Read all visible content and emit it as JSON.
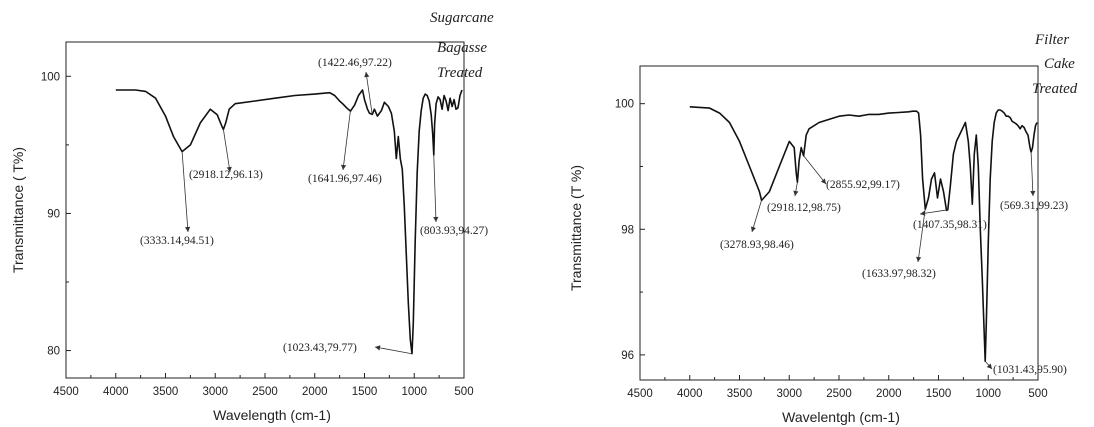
{
  "chart_data": [
    {
      "type": "line",
      "title_lines": [
        "Sugarcane",
        "Bagasse",
        "Treated"
      ],
      "xlabel": "Wavelength (cm-1)",
      "ylabel": "Transmittance ( T%)",
      "xlim": [
        4500,
        500
      ],
      "ylim": [
        78,
        102.5
      ],
      "xticks": [
        4500,
        4000,
        3500,
        3000,
        2500,
        2000,
        1500,
        1000,
        500
      ],
      "yticks": [
        80,
        90,
        100
      ],
      "grid": false,
      "series": [
        {
          "x": [
            4000,
            3800,
            3700,
            3600,
            3500,
            3420,
            3333,
            3250,
            3150,
            3050,
            2980,
            2930,
            2918,
            2895,
            2860,
            2800,
            2600,
            2400,
            2200,
            2000,
            1850,
            1800,
            1750,
            1720,
            1680,
            1641,
            1600,
            1560,
            1520,
            1500,
            1470,
            1450,
            1422,
            1400,
            1370,
            1330,
            1300,
            1260,
            1230,
            1200,
            1180,
            1160,
            1140,
            1120,
            1100,
            1080,
            1060,
            1040,
            1023,
            1010,
            990,
            970,
            950,
            930,
            910,
            890,
            870,
            850,
            830,
            815,
            804,
            795,
            780,
            760,
            740,
            720,
            700,
            680,
            660,
            640,
            620,
            600,
            580,
            560,
            540,
            520
          ],
          "y": [
            99.0,
            99.0,
            98.9,
            98.4,
            97.1,
            95.6,
            94.51,
            95.0,
            96.6,
            97.6,
            97.2,
            96.3,
            96.13,
            96.6,
            97.6,
            98.0,
            98.2,
            98.4,
            98.6,
            98.7,
            98.8,
            98.6,
            98.2,
            98.0,
            97.7,
            97.46,
            97.9,
            98.6,
            99.0,
            98.3,
            97.6,
            97.3,
            97.22,
            97.6,
            97.1,
            97.5,
            98.1,
            97.8,
            97.3,
            96.0,
            94.0,
            95.6,
            94.0,
            93.2,
            90.5,
            87.0,
            83.5,
            80.8,
            79.77,
            82.0,
            88.0,
            93.0,
            96.0,
            97.5,
            98.4,
            98.7,
            98.6,
            98.2,
            97.2,
            95.8,
            94.27,
            96.5,
            98.0,
            98.5,
            98.3,
            97.6,
            98.6,
            98.2,
            97.5,
            98.4,
            97.8,
            98.3,
            97.6,
            97.7,
            98.6,
            99.0
          ]
        }
      ],
      "annotations": [
        {
          "label": "(3333.14,94.51)",
          "x": 3333.14,
          "y": 94.51
        },
        {
          "label": "(2918.12,96.13)",
          "x": 2918.12,
          "y": 96.13
        },
        {
          "label": "(1641.96,97.46)",
          "x": 1641.96,
          "y": 97.46
        },
        {
          "label": "(1422.46,97.22)",
          "x": 1422.46,
          "y": 97.22
        },
        {
          "label": "(803.93,94.27)",
          "x": 803.93,
          "y": 94.27
        },
        {
          "label": "(1023.43,79.77)",
          "x": 1023.43,
          "y": 79.77
        }
      ]
    },
    {
      "type": "line",
      "title_lines": [
        "Filter",
        "Cake",
        "Treated"
      ],
      "xlabel": "Wavelentgh  (cm-1)",
      "ylabel": "Transmittance (T %)",
      "xlim": [
        4500,
        500
      ],
      "ylim": [
        95.6,
        100.6
      ],
      "xticks": [
        4500,
        4000,
        3500,
        3000,
        2500,
        2000,
        1500,
        1000,
        500
      ],
      "yticks": [
        96,
        98,
        100
      ],
      "grid": false,
      "series": [
        {
          "x": [
            4000,
            3800,
            3700,
            3600,
            3500,
            3400,
            3300,
            3278,
            3200,
            3100,
            3000,
            2950,
            2930,
            2918,
            2900,
            2880,
            2856,
            2830,
            2800,
            2700,
            2600,
            2500,
            2400,
            2300,
            2200,
            2100,
            2000,
            1900,
            1800,
            1760,
            1720,
            1700,
            1680,
            1660,
            1633,
            1600,
            1570,
            1540,
            1510,
            1480,
            1450,
            1420,
            1407,
            1380,
            1350,
            1320,
            1290,
            1260,
            1230,
            1200,
            1180,
            1160,
            1140,
            1120,
            1100,
            1080,
            1060,
            1040,
            1031,
            1020,
            1000,
            980,
            960,
            940,
            920,
            900,
            880,
            860,
            840,
            820,
            800,
            780,
            760,
            740,
            720,
            700,
            680,
            660,
            640,
            620,
            600,
            580,
            569,
            555,
            540,
            525,
            510
          ],
          "y": [
            99.95,
            99.93,
            99.85,
            99.7,
            99.4,
            99.0,
            98.6,
            98.46,
            98.6,
            99.0,
            99.4,
            99.3,
            98.9,
            98.75,
            99.1,
            99.3,
            99.17,
            99.5,
            99.6,
            99.7,
            99.75,
            99.8,
            99.82,
            99.8,
            99.83,
            99.83,
            99.85,
            99.86,
            99.87,
            99.88,
            99.88,
            99.85,
            99.5,
            98.8,
            98.32,
            98.5,
            98.8,
            98.9,
            98.5,
            98.8,
            98.6,
            98.3,
            98.31,
            98.7,
            99.2,
            99.4,
            99.5,
            99.6,
            99.7,
            99.4,
            99.0,
            98.4,
            99.2,
            99.5,
            99.0,
            98.0,
            97.2,
            96.3,
            95.9,
            96.5,
            97.8,
            98.8,
            99.4,
            99.7,
            99.85,
            99.9,
            99.9,
            99.88,
            99.85,
            99.8,
            99.8,
            99.78,
            99.72,
            99.7,
            99.68,
            99.65,
            99.6,
            99.65,
            99.62,
            99.55,
            99.5,
            99.3,
            99.23,
            99.3,
            99.5,
            99.65,
            99.7
          ]
        }
      ],
      "annotations": [
        {
          "label": "(3278.93,98.46)",
          "x": 3278.93,
          "y": 98.46
        },
        {
          "label": "(2918.12,98.75)",
          "x": 2918.12,
          "y": 98.75
        },
        {
          "label": "(2855.92,99.17)",
          "x": 2855.92,
          "y": 99.17
        },
        {
          "label": "(1407.35,98.31)",
          "x": 1407.35,
          "y": 98.31
        },
        {
          "label": "(1633.97,98.32)",
          "x": 1633.97,
          "y": 98.32
        },
        {
          "label": "(569.31,99.23)",
          "x": 569.31,
          "y": 99.23
        },
        {
          "label": "(1031.43,95.90)",
          "x": 1031.43,
          "y": 95.9
        }
      ]
    }
  ]
}
